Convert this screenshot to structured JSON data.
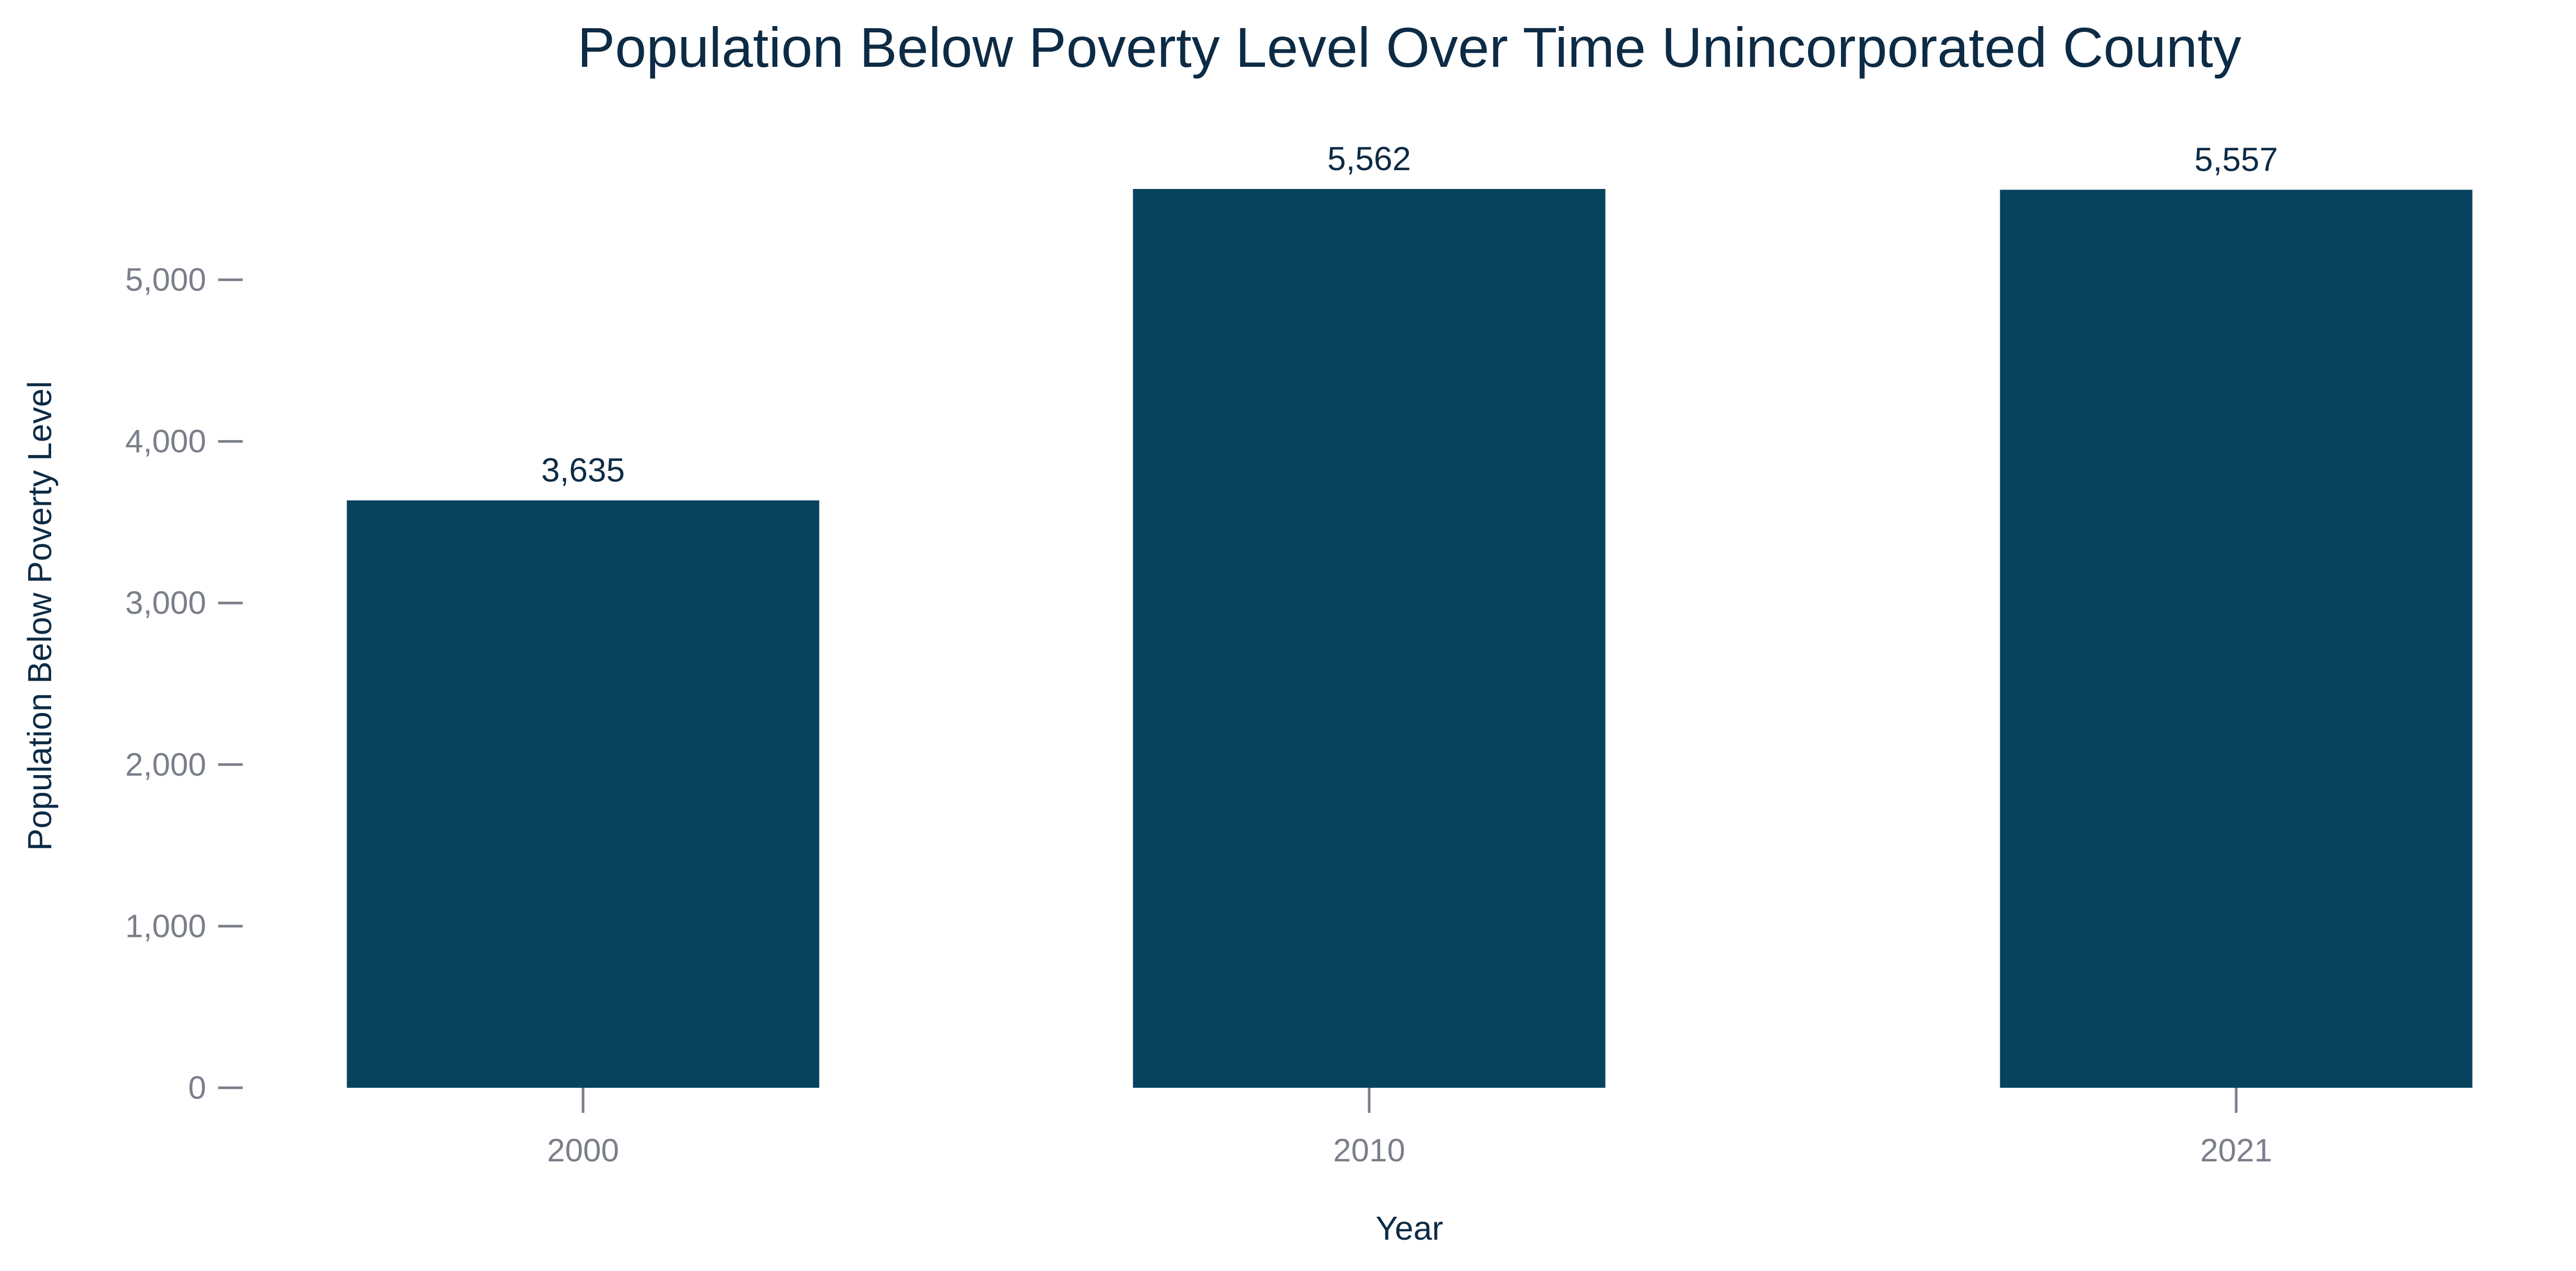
{
  "chart_data": {
    "type": "bar",
    "title": "Population Below Poverty Level Over Time Unincorporated County",
    "xlabel": "Year",
    "ylabel": "Population Below Poverty Level",
    "categories": [
      "2000",
      "2010",
      "2021"
    ],
    "values": [
      3635,
      5562,
      5557
    ],
    "data_labels": [
      "3,635",
      "5,562",
      "5,557"
    ],
    "ylim": [
      0,
      5562
    ],
    "yticks": [
      0,
      1000,
      2000,
      3000,
      4000,
      5000
    ],
    "ytick_labels": [
      "0",
      "1,000",
      "2,000",
      "3,000",
      "4,000",
      "5,000"
    ],
    "grid": false,
    "legend": "none",
    "colors": {
      "bar": "#08435e",
      "title": "#0d2b45",
      "tick": "#7a7f8a"
    }
  }
}
